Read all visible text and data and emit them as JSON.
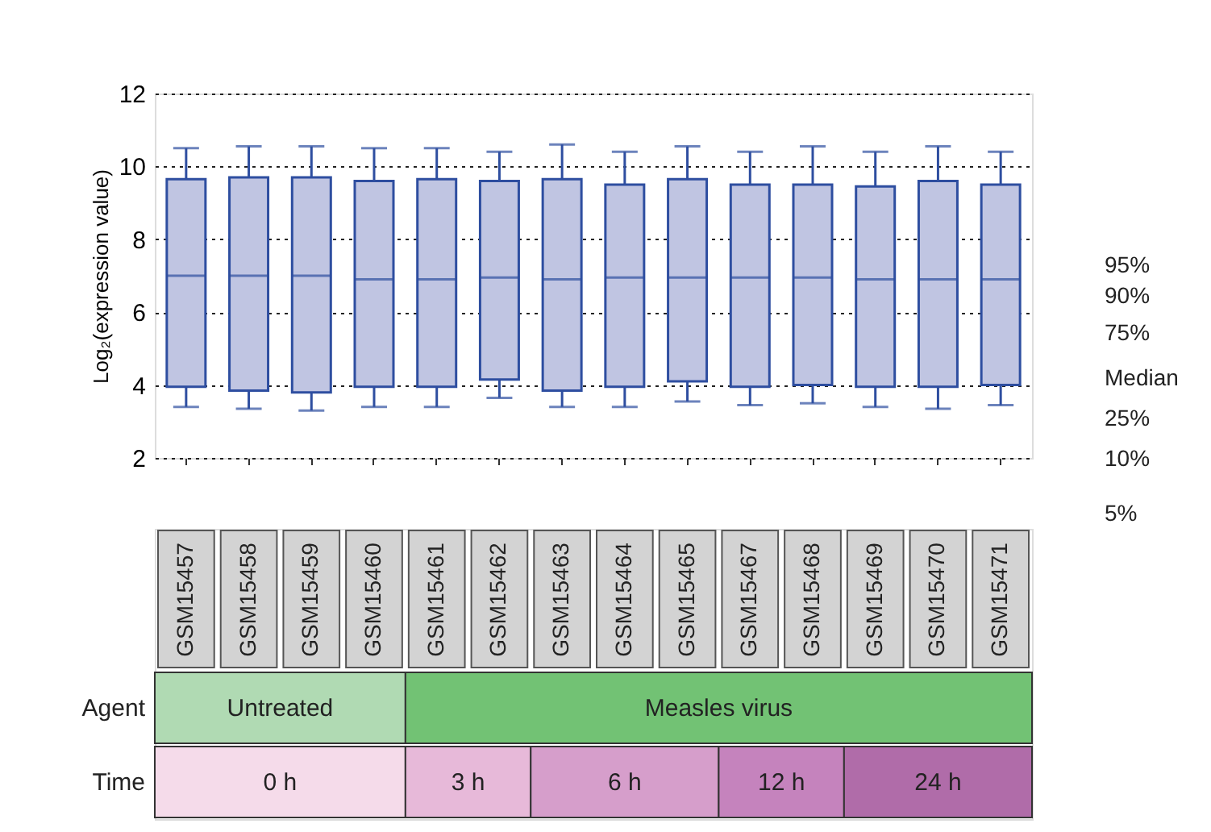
{
  "chart_data": {
    "type": "box",
    "ylabel": "Log₂(expression value)",
    "categories": [
      "GSM15457",
      "GSM15458",
      "GSM15459",
      "GSM15460",
      "GSM15461",
      "GSM15462",
      "GSM15463",
      "GSM15464",
      "GSM15465",
      "GSM15467",
      "GSM15468",
      "GSM15469",
      "GSM15470",
      "GSM15471"
    ],
    "series": [
      {
        "color": "#c0c5e2",
        "boxes": [
          {
            "low": 3.4,
            "q1": 3.95,
            "median": 7.0,
            "q3": 9.65,
            "high": 10.5
          },
          {
            "low": 3.35,
            "q1": 3.85,
            "median": 7.0,
            "q3": 9.7,
            "high": 10.55
          },
          {
            "low": 3.3,
            "q1": 3.8,
            "median": 7.0,
            "q3": 9.7,
            "high": 10.55
          },
          {
            "low": 3.4,
            "q1": 3.95,
            "median": 6.9,
            "q3": 9.6,
            "high": 10.5
          },
          {
            "low": 3.4,
            "q1": 3.95,
            "median": 6.9,
            "q3": 9.65,
            "high": 10.5
          },
          {
            "low": 3.65,
            "q1": 4.15,
            "median": 6.95,
            "q3": 9.6,
            "high": 10.4
          },
          {
            "low": 3.4,
            "q1": 3.85,
            "median": 6.9,
            "q3": 9.65,
            "high": 10.6
          },
          {
            "low": 3.4,
            "q1": 3.95,
            "median": 6.95,
            "q3": 9.5,
            "high": 10.4
          },
          {
            "low": 3.55,
            "q1": 4.1,
            "median": 6.95,
            "q3": 9.65,
            "high": 10.55
          },
          {
            "low": 3.45,
            "q1": 3.95,
            "median": 6.95,
            "q3": 9.5,
            "high": 10.4
          },
          {
            "low": 3.5,
            "q1": 4.0,
            "median": 6.95,
            "q3": 9.5,
            "high": 10.55
          },
          {
            "low": 3.4,
            "q1": 3.95,
            "median": 6.9,
            "q3": 9.45,
            "high": 10.4
          },
          {
            "low": 3.35,
            "q1": 3.95,
            "median": 6.9,
            "q3": 9.6,
            "high": 10.55
          },
          {
            "low": 3.45,
            "q1": 4.0,
            "median": 6.9,
            "q3": 9.5,
            "high": 10.4
          }
        ]
      }
    ],
    "ylim": [
      2,
      12
    ],
    "yticks": [
      2,
      4,
      6,
      8,
      10,
      12
    ],
    "grid": "y",
    "annotations": [
      "Agent",
      "Untreated",
      "Measles virus",
      "Time",
      "0 h",
      "3 h",
      "6 h",
      "12 h",
      "24 h",
      "95%",
      "90%",
      "75%",
      "Median",
      "25%",
      "10%",
      "5%"
    ]
  }
}
